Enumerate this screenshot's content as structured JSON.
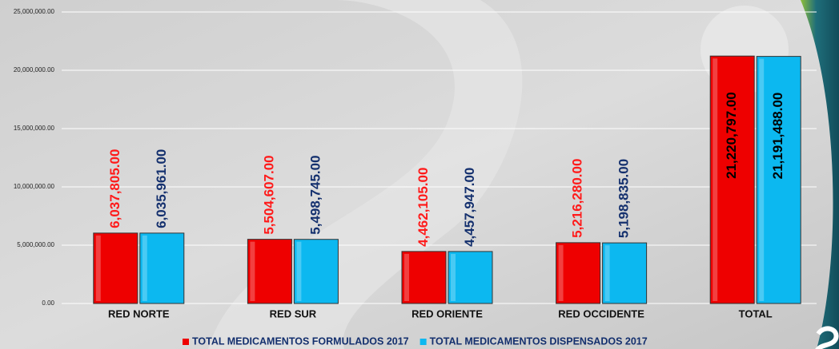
{
  "chart_data": {
    "type": "bar",
    "categories": [
      "RED NORTE",
      "RED SUR",
      "RED ORIENTE",
      "RED OCCIDENTE",
      "TOTAL"
    ],
    "series": [
      {
        "name": "TOTAL MEDICAMENTOS FORMULADOS 2017",
        "color": "#ee0000",
        "label_color": "#ff1a1a",
        "values": [
          6037805,
          5504607,
          4462105,
          5216280,
          21220797
        ],
        "value_labels": [
          "6,037,805.00",
          "5,504,607.00",
          "4,462,105.00",
          "5,216,280.00",
          "21,220,797.00"
        ]
      },
      {
        "name": "TOTAL MEDICAMENTOS DISPENSADOS 2017",
        "color": "#0cb8f0",
        "label_color": "#14306e",
        "values": [
          6035961,
          5498745,
          4457947,
          5198835,
          21191488
        ],
        "value_labels": [
          "6,035,961.00",
          "5,498,745.00",
          "4,457,947.00",
          "5,198,835.00",
          "21,191,488.00"
        ]
      }
    ],
    "ylim": [
      0,
      25000000
    ],
    "yticks": [
      {
        "value": 0,
        "label": "0.00"
      },
      {
        "value": 5000000,
        "label": "5,000,000.00"
      },
      {
        "value": 10000000,
        "label": "10,000,000.00"
      },
      {
        "value": 15000000,
        "label": "15,000,000.00"
      },
      {
        "value": 20000000,
        "label": "20,000,000.00"
      },
      {
        "value": 25000000,
        "label": "25,000,000.00"
      }
    ],
    "grid": true,
    "legend": "bottom"
  }
}
